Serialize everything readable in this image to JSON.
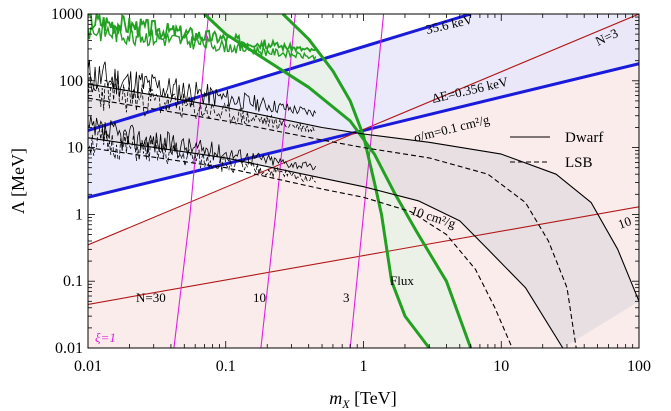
{
  "chart_data": {
    "type": "line",
    "xlabel_main": "m",
    "xlabel_sub": "X",
    "xlabel_unit": " [TeV]",
    "ylabel": "Λ [MeV]",
    "xscale": "log",
    "yscale": "log",
    "xlim": [
      0.01,
      100
    ],
    "ylim": [
      0.01,
      1000
    ],
    "xticks": [
      "0.01",
      "0.1",
      "1",
      "10",
      "100"
    ],
    "yticks": [
      "0.01",
      "0.1",
      "1",
      "10",
      "100",
      "1000"
    ],
    "legend": {
      "placement": "right",
      "entries": [
        {
          "label": "Dwarf",
          "style": "solid"
        },
        {
          "label": "LSB",
          "style": "dashed"
        }
      ]
    },
    "colors": {
      "blue": "#1a1adb",
      "green": "#22a022",
      "red": "#b01818",
      "magenta": "#e020e0",
      "black": "#000000",
      "blue_band": "#e8e8fa",
      "pink_region": "#fbecec",
      "gray_band": "#e6e0e0"
    },
    "annotations": {
      "blue_upper": "35.6 keV",
      "blue_lower": "ΔE=0.356 keV",
      "red_N3": "N=3",
      "red_10": "10",
      "N30": "N=30",
      "mag10": "10",
      "mag3": "3",
      "flux": "Flux",
      "xi": "ξ=1",
      "sigma01": "σ/m=0.1 cm²/g",
      "sigma10": "10 cm²/g"
    },
    "series": [
      {
        "name": "35.6 keV",
        "color": "blue",
        "points": [
          [
            0.01,
            18
          ],
          [
            6,
            1000
          ]
        ]
      },
      {
        "name": "ΔE=0.356 keV",
        "color": "blue",
        "points": [
          [
            0.01,
            1.8
          ],
          [
            100,
            180
          ]
        ]
      },
      {
        "name": "N=3",
        "color": "red",
        "points": [
          [
            0.01,
            0.35
          ],
          [
            100,
            1000
          ]
        ]
      },
      {
        "name": "10",
        "color": "red",
        "points": [
          [
            0.01,
            0.045
          ],
          [
            100,
            1.3
          ]
        ]
      },
      {
        "name": "N=30",
        "color": "magenta",
        "points": [
          [
            0.042,
            0.01
          ],
          [
            0.055,
            1
          ],
          [
            0.075,
            1000
          ]
        ]
      },
      {
        "name": "10",
        "color": "magenta",
        "points": [
          [
            0.18,
            0.01
          ],
          [
            0.23,
            1
          ],
          [
            0.32,
            1000
          ]
        ]
      },
      {
        "name": "3",
        "color": "magenta",
        "points": [
          [
            0.8,
            0.01
          ],
          [
            1.0,
            1
          ],
          [
            1.4,
            1000
          ]
        ]
      },
      {
        "name": "Flux",
        "color": "green",
        "points": [
          [
            0.07,
            1000
          ],
          [
            0.1,
            500
          ],
          [
            0.2,
            200
          ],
          [
            0.4,
            80
          ],
          [
            0.8,
            25
          ],
          [
            1.2,
            8
          ],
          [
            1.7,
            2
          ],
          [
            2.5,
            0.5
          ],
          [
            4,
            0.1
          ],
          [
            6,
            0.01
          ]
        ]
      },
      {
        "name": "Flux",
        "color": "green",
        "points": [
          [
            0.26,
            1000
          ],
          [
            0.4,
            420
          ],
          [
            0.6,
            140
          ],
          [
            0.8,
            50
          ],
          [
            1.0,
            15
          ],
          [
            1.2,
            3
          ],
          [
            1.35,
            1
          ],
          [
            1.6,
            0.1
          ],
          [
            2,
            0.03
          ],
          [
            3,
            0.01
          ]
        ]
      },
      {
        "name": "Dwarf 0.1 cm²/g",
        "color": "black",
        "style": "solid",
        "points": [
          [
            0.01,
            90
          ],
          [
            0.1,
            40
          ],
          [
            0.5,
            20
          ],
          [
            1,
            16
          ],
          [
            3,
            12
          ],
          [
            10,
            8
          ],
          [
            25,
            4
          ],
          [
            45,
            1.5
          ],
          [
            70,
            0.3
          ],
          [
            100,
            0.05
          ]
        ]
      },
      {
        "name": "LSB 0.1 cm²/g",
        "color": "black",
        "style": "dashed",
        "points": [
          [
            0.01,
            55
          ],
          [
            0.1,
            25
          ],
          [
            0.5,
            13
          ],
          [
            1,
            10
          ],
          [
            3,
            7
          ],
          [
            8,
            4
          ],
          [
            15,
            1.5
          ],
          [
            22,
            0.4
          ],
          [
            30,
            0.08
          ],
          [
            35,
            0.01
          ]
        ]
      },
      {
        "name": "Dwarf 10 cm²/g",
        "color": "black",
        "style": "solid",
        "points": [
          [
            0.01,
            14
          ],
          [
            0.1,
            7
          ],
          [
            0.5,
            3.5
          ],
          [
            1,
            2.6
          ],
          [
            2.5,
            1.6
          ],
          [
            5,
            0.8
          ],
          [
            8,
            0.3
          ],
          [
            15,
            0.08
          ],
          [
            28,
            0.01
          ]
        ]
      },
      {
        "name": "LSB 10 cm²/g",
        "color": "black",
        "style": "dashed",
        "points": [
          [
            0.01,
            10
          ],
          [
            0.1,
            5
          ],
          [
            0.5,
            2.4
          ],
          [
            1,
            1.8
          ],
          [
            2.2,
            1.1
          ],
          [
            4,
            0.5
          ],
          [
            6.5,
            0.15
          ],
          [
            9,
            0.04
          ],
          [
            12,
            0.01
          ]
        ]
      }
    ]
  }
}
